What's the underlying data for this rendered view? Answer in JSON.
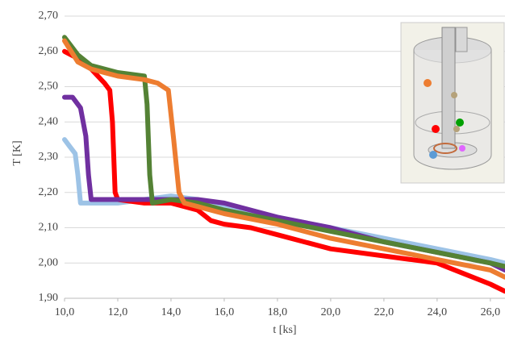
{
  "chart_data": {
    "type": "line",
    "y_label": "T [K]",
    "x_label": "t [ks]",
    "xlim": [
      10,
      26.55
    ],
    "ylim": [
      1.9,
      2.7
    ],
    "xticks": [
      {
        "value": 10,
        "label": "10,0"
      },
      {
        "value": 12,
        "label": "12,0"
      },
      {
        "value": 14,
        "label": "14,0"
      },
      {
        "value": 16,
        "label": "16,0"
      },
      {
        "value": 18,
        "label": "18,0"
      },
      {
        "value": 20,
        "label": "20,0"
      },
      {
        "value": 22,
        "label": "22,0"
      },
      {
        "value": 24,
        "label": "24,0"
      },
      {
        "value": 26,
        "label": "26,0"
      }
    ],
    "yticks": [
      {
        "value": 1.9,
        "label": "1,90"
      },
      {
        "value": 2.0,
        "label": "2,00"
      },
      {
        "value": 2.1,
        "label": "2,10"
      },
      {
        "value": 2.2,
        "label": "2,20"
      },
      {
        "value": 2.3,
        "label": "2,30"
      },
      {
        "value": 2.4,
        "label": "2,40"
      },
      {
        "value": 2.5,
        "label": "2,50"
      },
      {
        "value": 2.6,
        "label": "2,60"
      },
      {
        "value": 2.7,
        "label": "2,70"
      }
    ],
    "grid": true,
    "series": [
      {
        "color": "#9dc3e6",
        "x": [
          10,
          10.2,
          10.4,
          10.5,
          10.6,
          11,
          12,
          13,
          14,
          15,
          16,
          18,
          20,
          22,
          24,
          26,
          26.55
        ],
        "values": [
          2.35,
          2.33,
          2.31,
          2.25,
          2.17,
          2.17,
          2.17,
          2.18,
          2.19,
          2.18,
          2.16,
          2.13,
          2.1,
          2.07,
          2.04,
          2.01,
          2.0
        ]
      },
      {
        "color": "#ff0000",
        "x": [
          10,
          10.5,
          11,
          11.5,
          11.7,
          11.8,
          11.9,
          12,
          13,
          14,
          15,
          15.5,
          16,
          17,
          18,
          20,
          22,
          24,
          25,
          26,
          26.55
        ],
        "values": [
          2.6,
          2.58,
          2.55,
          2.51,
          2.49,
          2.4,
          2.2,
          2.18,
          2.17,
          2.17,
          2.15,
          2.12,
          2.11,
          2.1,
          2.08,
          2.04,
          2.02,
          2.0,
          1.97,
          1.94,
          1.92
        ]
      },
      {
        "color": "#7030a0",
        "x": [
          10,
          10.3,
          10.6,
          10.8,
          10.9,
          11,
          12,
          13,
          14,
          15,
          16,
          18,
          20,
          22,
          24,
          26,
          26.55
        ],
        "values": [
          2.47,
          2.47,
          2.44,
          2.36,
          2.25,
          2.18,
          2.18,
          2.18,
          2.18,
          2.18,
          2.17,
          2.13,
          2.1,
          2.06,
          2.03,
          2.0,
          1.98
        ]
      },
      {
        "color": "#548235",
        "x": [
          10,
          10.5,
          11,
          12,
          13,
          13.1,
          13.2,
          13.3,
          14,
          15,
          16,
          18,
          20,
          22,
          24,
          26,
          26.55
        ],
        "values": [
          2.64,
          2.59,
          2.56,
          2.54,
          2.53,
          2.45,
          2.25,
          2.17,
          2.18,
          2.17,
          2.15,
          2.12,
          2.09,
          2.06,
          2.03,
          2.0,
          1.99
        ]
      },
      {
        "color": "#ed7d31",
        "x": [
          10,
          10.5,
          11,
          12,
          13,
          13.5,
          13.9,
          14.1,
          14.3,
          14.5,
          15,
          16,
          18,
          20,
          22,
          24,
          26,
          26.55
        ],
        "values": [
          2.63,
          2.57,
          2.55,
          2.53,
          2.52,
          2.51,
          2.49,
          2.35,
          2.2,
          2.17,
          2.16,
          2.14,
          2.11,
          2.07,
          2.04,
          2.01,
          1.98,
          1.96
        ]
      }
    ]
  }
}
